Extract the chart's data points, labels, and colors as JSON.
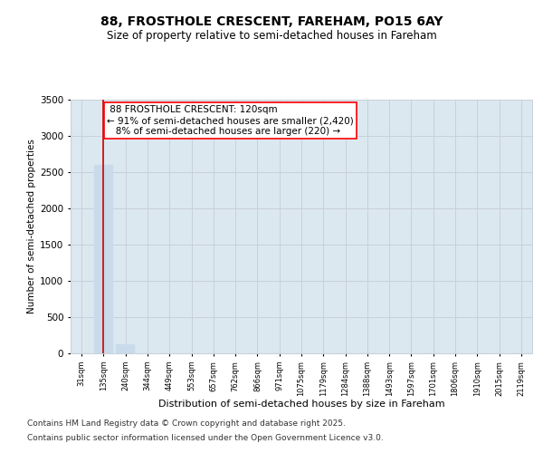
{
  "title_line1": "88, FROSTHOLE CRESCENT, FAREHAM, PO15 6AY",
  "title_line2": "Size of property relative to semi-detached houses in Fareham",
  "xlabel": "Distribution of semi-detached houses by size in Fareham",
  "ylabel": "Number of semi-detached properties",
  "bar_color": "#c9daea",
  "bar_edge_color": "#c9daea",
  "grid_color": "#c8d0db",
  "background_color": "#dce8f0",
  "annotation_box_color": "#ff0000",
  "vline_color": "#cc0000",
  "categories": [
    "31sqm",
    "135sqm",
    "240sqm",
    "344sqm",
    "449sqm",
    "553sqm",
    "657sqm",
    "762sqm",
    "866sqm",
    "971sqm",
    "1075sqm",
    "1179sqm",
    "1284sqm",
    "1388sqm",
    "1493sqm",
    "1597sqm",
    "1701sqm",
    "1806sqm",
    "1910sqm",
    "2015sqm",
    "2119sqm"
  ],
  "values": [
    0,
    2600,
    120,
    0,
    0,
    0,
    0,
    0,
    0,
    0,
    0,
    0,
    0,
    0,
    0,
    0,
    0,
    0,
    0,
    0,
    0
  ],
  "ylim": [
    0,
    3500
  ],
  "yticks": [
    0,
    500,
    1000,
    1500,
    2000,
    2500,
    3000,
    3500
  ],
  "property_size": "120sqm",
  "property_name": "88 FROSTHOLE CRESCENT:",
  "pct_smaller": "91%",
  "count_smaller": "2,420",
  "pct_larger": "8%",
  "count_larger": "220",
  "vline_x_idx": 1,
  "footer_line1": "Contains HM Land Registry data © Crown copyright and database right 2025.",
  "footer_line2": "Contains public sector information licensed under the Open Government Licence v3.0.",
  "title_fontsize": 10,
  "subtitle_fontsize": 8.5,
  "annotation_fontsize": 7.5,
  "footer_fontsize": 6.5,
  "ylabel_fontsize": 7.5,
  "xlabel_fontsize": 8,
  "ytick_fontsize": 7.5,
  "xtick_fontsize": 6
}
